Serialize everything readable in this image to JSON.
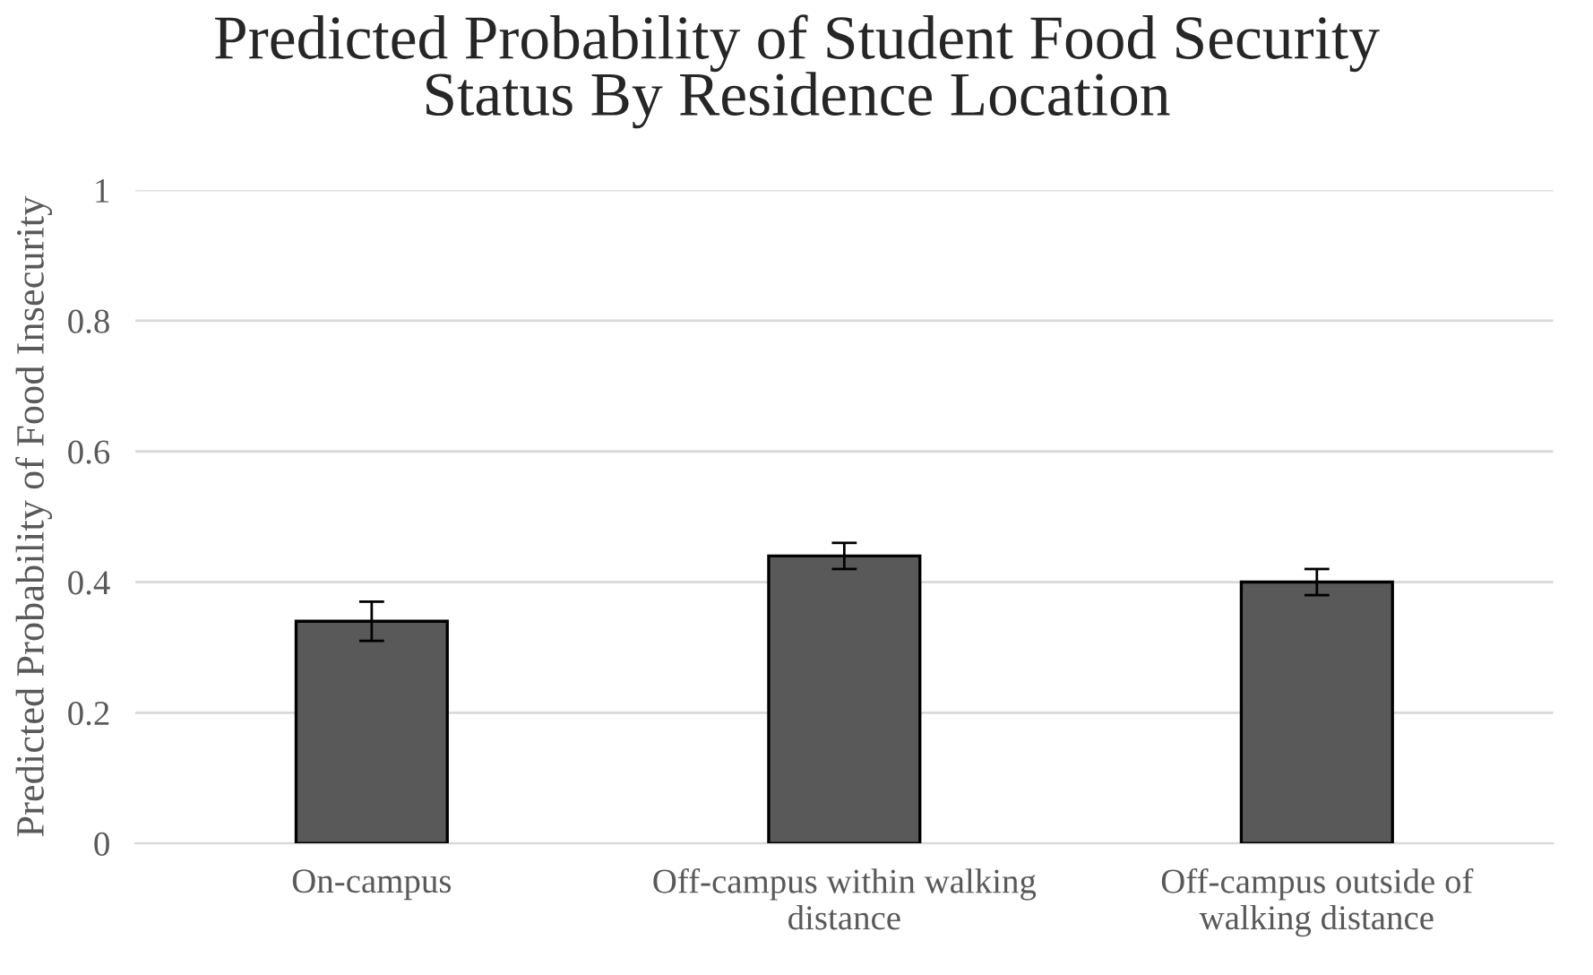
{
  "chart_data": {
    "type": "bar",
    "title": "Predicted Probability of Student Food Security\nStatus By Residence Location",
    "ylabel": "Predicted Probability of Food Insecurity",
    "categories": [
      "On-campus",
      "Off-campus within walking\ndistance",
      "Off-campus outside of\nwalking distance"
    ],
    "values": [
      0.34,
      0.44,
      0.4
    ],
    "color": "#595959",
    "errors": [
      [
        0.31,
        0.37
      ],
      [
        0.42,
        0.46
      ],
      [
        0.38,
        0.42
      ]
    ],
    "ylim": [
      0,
      1
    ],
    "yticks": [
      0,
      {
        "value": 0.2,
        "label": "0.2"
      },
      {
        "value": 0.4,
        "label": "0.4"
      },
      {
        "value": 0.6,
        "label": "0.6"
      },
      {
        "value": 0.8,
        "label": "0.8"
      },
      1
    ],
    "grid": "y",
    "legend": false
  }
}
